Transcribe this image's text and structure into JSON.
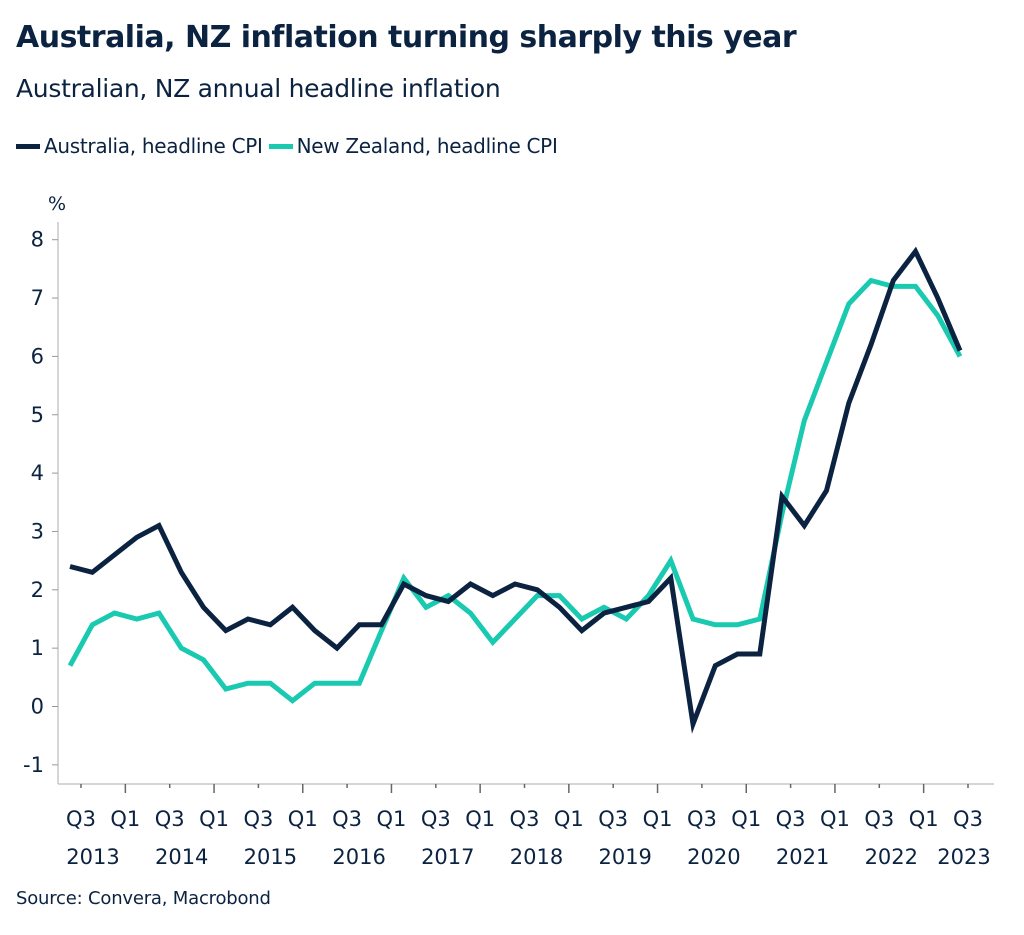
{
  "title": "Australia, NZ inflation turning sharply this year",
  "subtitle": "Australian, NZ annual headline inflation",
  "source": "Source: Convera, Macrobond",
  "colors": {
    "australia": "#0b2341",
    "new_zealand": "#19c9b0",
    "axis": "#c8c8c8",
    "text": "#0b2341"
  },
  "chart_data": {
    "type": "line",
    "title": "Australia, NZ inflation turning sharply this year",
    "subtitle": "Australian, NZ annual headline inflation",
    "ylabel": "%",
    "xlabel": "",
    "ylim": [
      -1,
      8
    ],
    "yticks": [
      -1,
      0,
      1,
      2,
      3,
      4,
      5,
      6,
      7,
      8
    ],
    "grid": false,
    "legend_position": "top-left",
    "x": [
      "Q2 2013",
      "Q3 2013",
      "Q4 2013",
      "Q1 2014",
      "Q2 2014",
      "Q3 2014",
      "Q4 2014",
      "Q1 2015",
      "Q2 2015",
      "Q3 2015",
      "Q4 2015",
      "Q1 2016",
      "Q2 2016",
      "Q3 2016",
      "Q4 2016",
      "Q1 2017",
      "Q2 2017",
      "Q3 2017",
      "Q4 2017",
      "Q1 2018",
      "Q2 2018",
      "Q3 2018",
      "Q4 2018",
      "Q1 2019",
      "Q2 2019",
      "Q3 2019",
      "Q4 2019",
      "Q1 2020",
      "Q2 2020",
      "Q3 2020",
      "Q4 2020",
      "Q1 2021",
      "Q2 2021",
      "Q3 2021",
      "Q4 2021",
      "Q1 2022",
      "Q2 2022",
      "Q3 2022",
      "Q4 2022",
      "Q1 2023",
      "Q2 2023"
    ],
    "xtick_labels": [
      {
        "q": "Q3",
        "year": "2013"
      },
      {
        "q": "Q1",
        "year": ""
      },
      {
        "q": "Q3",
        "year": "2014"
      },
      {
        "q": "Q1",
        "year": ""
      },
      {
        "q": "Q3",
        "year": "2015"
      },
      {
        "q": "Q1",
        "year": ""
      },
      {
        "q": "Q3",
        "year": "2016"
      },
      {
        "q": "Q1",
        "year": ""
      },
      {
        "q": "Q3",
        "year": "2017"
      },
      {
        "q": "Q1",
        "year": ""
      },
      {
        "q": "Q3",
        "year": "2018"
      },
      {
        "q": "Q1",
        "year": ""
      },
      {
        "q": "Q3",
        "year": "2019"
      },
      {
        "q": "Q1",
        "year": ""
      },
      {
        "q": "Q3",
        "year": "2020"
      },
      {
        "q": "Q1",
        "year": ""
      },
      {
        "q": "Q3",
        "year": "2021"
      },
      {
        "q": "Q1",
        "year": ""
      },
      {
        "q": "Q3",
        "year": "2022"
      },
      {
        "q": "Q1",
        "year": ""
      },
      {
        "q": "Q3",
        "year": "2023"
      }
    ],
    "series": [
      {
        "name": "Australia, headline CPI",
        "color": "#0b2341",
        "values": [
          2.4,
          2.3,
          2.6,
          2.9,
          3.1,
          2.3,
          1.7,
          1.3,
          1.5,
          1.4,
          1.7,
          1.3,
          1.0,
          1.4,
          1.4,
          2.1,
          1.9,
          1.8,
          2.1,
          1.9,
          2.1,
          2.0,
          1.7,
          1.3,
          1.6,
          1.7,
          1.8,
          2.2,
          -0.3,
          0.7,
          0.9,
          0.9,
          3.6,
          3.1,
          3.7,
          5.2,
          6.2,
          7.3,
          7.8,
          7.0,
          6.1
        ]
      },
      {
        "name": "New Zealand, headline CPI",
        "color": "#19c9b0",
        "values": [
          0.7,
          1.4,
          1.6,
          1.5,
          1.6,
          1.0,
          0.8,
          0.3,
          0.4,
          0.4,
          0.1,
          0.4,
          0.4,
          0.4,
          1.3,
          2.2,
          1.7,
          1.9,
          1.6,
          1.1,
          1.5,
          1.9,
          1.9,
          1.5,
          1.7,
          1.5,
          1.9,
          2.5,
          1.5,
          1.4,
          1.4,
          1.5,
          3.3,
          4.9,
          5.9,
          6.9,
          7.3,
          7.2,
          7.2,
          6.7,
          6.0
        ]
      }
    ]
  }
}
